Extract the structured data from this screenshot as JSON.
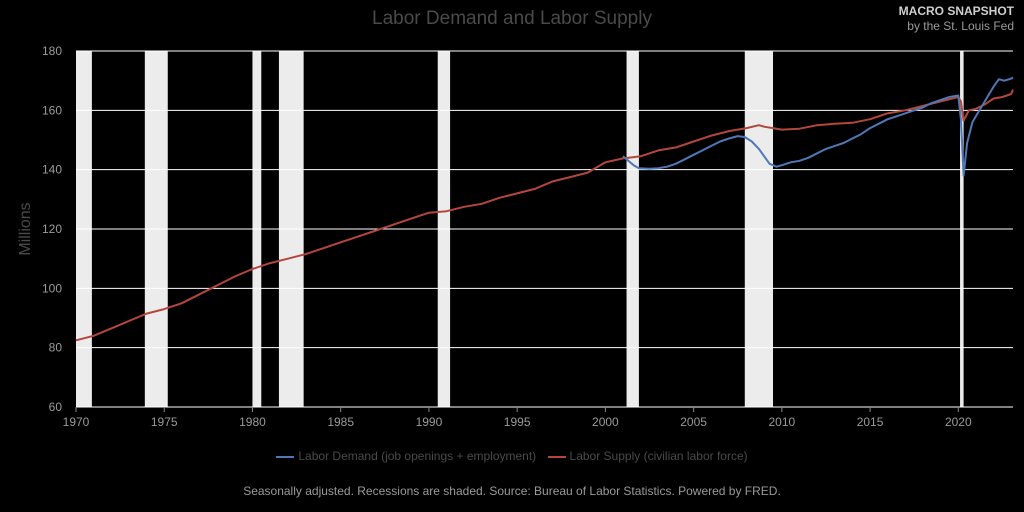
{
  "brand": {
    "line1": "MACRO SNAPSHOT",
    "line2": "by the St. Louis Fed"
  },
  "footer": "Seasonally adjusted. Recessions are shaded. Source: Bureau of Labor Statistics. Powered by FRED.",
  "colors": {
    "demand": "#4f78b6",
    "supply": "#b4463c",
    "recession": "#ececec",
    "grid": "#ffffff",
    "background": "#000000"
  },
  "chart_data": {
    "type": "line",
    "title": "Labor Demand and Labor Supply",
    "ylabel": "Millions",
    "xlabel": "",
    "xlim": [
      1970,
      2023.1
    ],
    "ylim": [
      60,
      180
    ],
    "x_ticks": [
      1970,
      1975,
      1980,
      1985,
      1990,
      1995,
      2000,
      2005,
      2010,
      2015,
      2020
    ],
    "y_ticks": [
      60,
      80,
      100,
      120,
      140,
      160,
      180
    ],
    "grid": "horizontal",
    "legend_position": "bottom",
    "recessions": [
      [
        1970.0,
        1970.9
      ],
      [
        1973.9,
        1975.2
      ],
      [
        1980.0,
        1980.5
      ],
      [
        1981.5,
        1982.9
      ],
      [
        1990.5,
        1991.2
      ],
      [
        2001.2,
        2001.9
      ],
      [
        2007.9,
        2009.5
      ],
      [
        2020.1,
        2020.3
      ]
    ],
    "series": [
      {
        "name": "Labor Demand (job openings + employment)",
        "color": "#4f78b6",
        "x": [
          2001.0,
          2001.3,
          2001.6,
          2001.9,
          2002.5,
          2003.0,
          2003.5,
          2004.0,
          2004.5,
          2005.0,
          2005.5,
          2006.0,
          2006.5,
          2007.0,
          2007.5,
          2007.9,
          2008.3,
          2008.7,
          2009.0,
          2009.3,
          2009.7,
          2010.0,
          2010.5,
          2011.0,
          2011.5,
          2012.0,
          2012.5,
          2013.0,
          2013.5,
          2014.0,
          2014.5,
          2015.0,
          2015.5,
          2016.0,
          2016.5,
          2017.0,
          2017.5,
          2018.0,
          2018.5,
          2019.0,
          2019.5,
          2020.0,
          2020.15,
          2020.3,
          2020.5,
          2020.8,
          2021.0,
          2021.3,
          2021.6,
          2022.0,
          2022.3,
          2022.6,
          2022.9,
          2023.1
        ],
        "values": [
          144.5,
          143.0,
          141.5,
          140.5,
          140.3,
          140.5,
          141.0,
          142.0,
          143.5,
          145.0,
          146.5,
          148.0,
          149.5,
          150.5,
          151.3,
          151.0,
          149.5,
          147.0,
          144.5,
          142.0,
          141.0,
          141.5,
          142.5,
          143.0,
          144.0,
          145.5,
          147.0,
          148.0,
          149.0,
          150.5,
          152.0,
          154.0,
          155.5,
          157.0,
          158.0,
          159.0,
          160.0,
          161.0,
          162.5,
          163.5,
          164.5,
          165.0,
          157.0,
          138.0,
          149.0,
          156.0,
          158.0,
          161.0,
          164.0,
          168.0,
          170.5,
          170.0,
          170.5,
          171.0
        ]
      },
      {
        "name": "Labor Supply (civilian labor force)",
        "color": "#b4463c",
        "x": [
          1970.0,
          1971.0,
          1972.0,
          1973.0,
          1974.0,
          1975.0,
          1976.0,
          1977.0,
          1978.0,
          1979.0,
          1980.0,
          1981.0,
          1982.0,
          1983.0,
          1984.0,
          1985.0,
          1986.0,
          1987.0,
          1988.0,
          1989.0,
          1990.0,
          1991.0,
          1992.0,
          1993.0,
          1994.0,
          1995.0,
          1996.0,
          1997.0,
          1998.0,
          1999.0,
          2000.0,
          2001.0,
          2002.0,
          2003.0,
          2004.0,
          2005.0,
          2006.0,
          2007.0,
          2008.0,
          2008.7,
          2009.0,
          2010.0,
          2011.0,
          2012.0,
          2013.0,
          2014.0,
          2015.0,
          2016.0,
          2017.0,
          2018.0,
          2019.0,
          2020.0,
          2020.15,
          2020.3,
          2020.6,
          2021.0,
          2021.5,
          2022.0,
          2022.5,
          2023.0,
          2023.1
        ],
        "values": [
          82.5,
          84.0,
          86.5,
          89.0,
          91.5,
          93.0,
          95.0,
          98.0,
          101.0,
          104.0,
          106.5,
          108.5,
          110.0,
          111.5,
          113.5,
          115.5,
          117.5,
          119.5,
          121.5,
          123.5,
          125.5,
          126.0,
          127.5,
          128.5,
          130.5,
          132.0,
          133.5,
          136.0,
          137.5,
          139.0,
          142.5,
          143.8,
          144.5,
          146.5,
          147.5,
          149.5,
          151.5,
          153.0,
          154.0,
          155.0,
          154.5,
          153.5,
          153.8,
          155.0,
          155.5,
          155.8,
          157.0,
          159.0,
          160.0,
          161.5,
          163.0,
          164.5,
          163.0,
          156.5,
          160.0,
          160.5,
          162.0,
          164.0,
          164.5,
          165.5,
          167.0
        ]
      }
    ]
  }
}
